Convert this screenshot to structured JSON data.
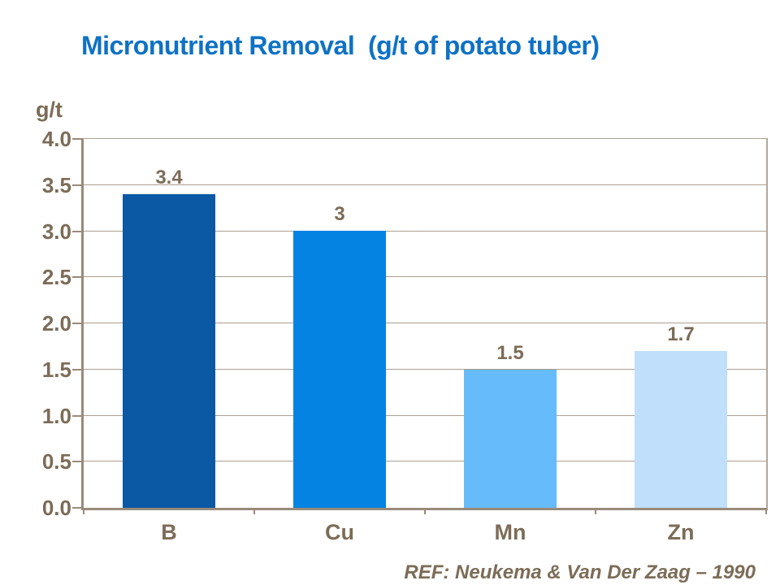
{
  "title": "Micronutrient Removal  (g/t of potato tuber)",
  "footer": {
    "reference": "REF: Neukema & Van Der Zaag – 1990"
  },
  "colors": {
    "title_blue": "#0E72C6",
    "label_brown": "#7C6C57",
    "axis_line": "#9A8A79",
    "gridline": "#AC9F90",
    "bar_b": "#0B58A4",
    "bar_cu": "#0583E2",
    "bar_mn": "#66BBFA",
    "bar_zn": "#BFDFFA"
  },
  "chart_data": {
    "type": "bar",
    "title": "Micronutrient Removal (g/t of potato tuber)",
    "categories": [
      "B",
      "Cu",
      "Mn",
      "Zn"
    ],
    "values": [
      3.4,
      3,
      1.5,
      1.7
    ],
    "value_labels": [
      "3.4",
      "3",
      "1.5",
      "1.7"
    ],
    "bar_colors": [
      "#0B58A4",
      "#0583E2",
      "#66BBFA",
      "#BFDFFA"
    ],
    "xlabel": "",
    "ylabel": "g/t",
    "ylim": [
      0,
      4.0
    ],
    "ytick_labels": [
      "4.0",
      "3.5",
      "3.0",
      "2.5",
      "2.0",
      "1.5",
      "1.0",
      "0.5",
      "0.0"
    ],
    "grid": true,
    "legend": false
  }
}
